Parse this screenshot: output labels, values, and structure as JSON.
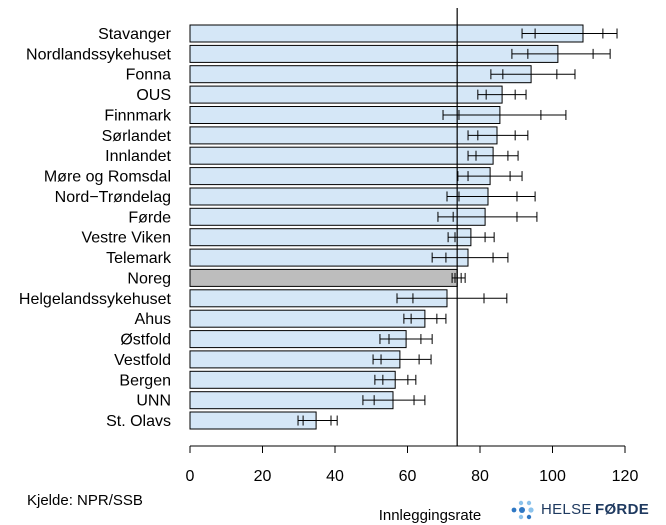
{
  "chart_data": {
    "type": "bar",
    "orientation": "horizontal",
    "categories": [
      "Stavanger",
      "Nordlandssykehuset",
      "Fonna",
      "OUS",
      "Finnmark",
      "Sørlandet",
      "Innlandet",
      "Møre og Romsdal",
      "Nord−Trøndelag",
      "Førde",
      "Vestre Viken",
      "Telemark",
      "Noreg",
      "Helgelandssykehuset",
      "Ahus",
      "Østfold",
      "Vestfold",
      "Bergen",
      "UNN",
      "St. Olavs"
    ],
    "values": [
      108.4,
      101.5,
      94.1,
      86.1,
      85.5,
      84.7,
      83.6,
      82.8,
      82.2,
      81.4,
      77.5,
      76.7,
      73.7,
      70.9,
      64.8,
      59.6,
      57.9,
      56.6,
      56.0,
      34.8
    ],
    "outer_interval": [
      [
        91.6,
        117.8
      ],
      [
        88.8,
        115.9
      ],
      [
        83.0,
        106.2
      ],
      [
        79.4,
        92.7
      ],
      [
        69.8,
        103.7
      ],
      [
        76.7,
        93.2
      ],
      [
        76.7,
        90.5
      ],
      [
        73.9,
        91.6
      ],
      [
        70.9,
        95.2
      ],
      [
        68.4,
        95.7
      ],
      [
        71.2,
        83.9
      ],
      [
        66.8,
        87.7
      ],
      [
        72.3,
        75.9
      ],
      [
        57.1,
        87.4
      ],
      [
        59.0,
        70.6
      ],
      [
        52.4,
        66.8
      ],
      [
        50.5,
        66.5
      ],
      [
        51.0,
        62.3
      ],
      [
        47.7,
        64.8
      ],
      [
        29.8,
        40.6
      ]
    ],
    "inner_interval": [
      [
        95.2,
        113.9
      ],
      [
        93.2,
        111.2
      ],
      [
        86.3,
        101.2
      ],
      [
        81.7,
        89.7
      ],
      [
        74.2,
        96.8
      ],
      [
        79.4,
        89.7
      ],
      [
        78.9,
        87.7
      ],
      [
        76.7,
        88.3
      ],
      [
        74.2,
        90.2
      ],
      [
        72.6,
        90.2
      ],
      [
        73.1,
        81.4
      ],
      [
        70.6,
        83.6
      ],
      [
        73.1,
        74.8
      ],
      [
        61.5,
        81.1
      ],
      [
        61.0,
        68.1
      ],
      [
        54.9,
        63.7
      ],
      [
        52.7,
        63.2
      ],
      [
        53.2,
        60.1
      ],
      [
        50.8,
        61.8
      ],
      [
        31.2,
        38.9
      ]
    ],
    "highlight_category": "Noreg",
    "reference_line": 73.7,
    "xlabel": "Innleggingsrate",
    "xlim": [
      0,
      120
    ],
    "xticks": [
      0,
      20,
      40,
      60,
      80,
      100,
      120
    ],
    "grid": false,
    "legend": "none",
    "colors": {
      "bar": "#d5e7f7",
      "highlight": "#bdbdbd",
      "edge": "#000000",
      "error_bar": "#000000",
      "reference_line": "#000000"
    }
  },
  "source": "Kjelde: NPR/SSB",
  "logo": {
    "name_light": "HELSE",
    "name_bold": "FØRDE",
    "dot_light": "#8cc3ec",
    "dot_dark": "#2f78c4"
  }
}
